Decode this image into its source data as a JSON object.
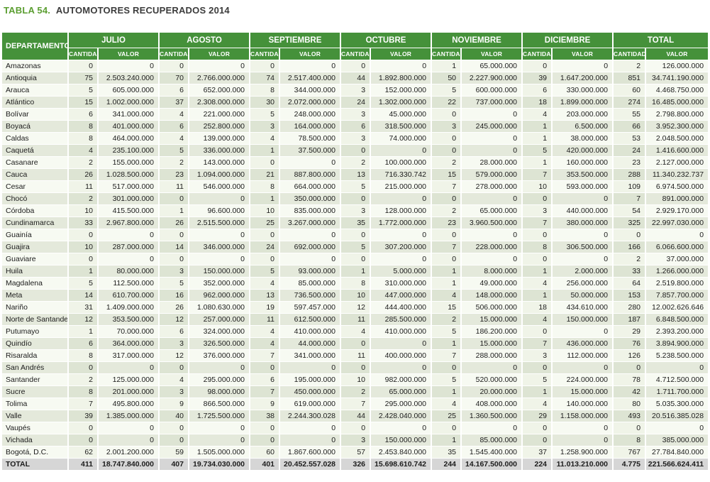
{
  "title": {
    "label": "TABLA 54.",
    "text": "AUTOMOTORES RECUPERADOS 2014"
  },
  "colors": {
    "header_green": "#45913a",
    "title_green": "#5b9e31",
    "row_light": "#f7faf2",
    "row_dark": "#e4e9db",
    "total_gray": "#d6d6d6"
  },
  "table": {
    "department_header": "DEPARTAMENTO",
    "month_groups": [
      "JULIO",
      "AGOSTO",
      "SEPTIEMBRE",
      "OCTUBRE",
      "NOVIEMBRE",
      "DICIEMBRE",
      "TOTAL"
    ],
    "sub_headers": [
      "CANTIDAD",
      "VALOR"
    ],
    "rows": [
      {
        "department": "Amazonas",
        "cells": [
          "0",
          "0",
          "0",
          "0",
          "0",
          "0",
          "0",
          "0",
          "1",
          "65.000.000",
          "0",
          "0",
          "2",
          "126.000.000"
        ]
      },
      {
        "department": "Antioquia",
        "cells": [
          "75",
          "2.503.240.000",
          "70",
          "2.766.000.000",
          "74",
          "2.517.400.000",
          "44",
          "1.892.800.000",
          "50",
          "2.227.900.000",
          "39",
          "1.647.200.000",
          "851",
          "34.741.190.000"
        ]
      },
      {
        "department": "Arauca",
        "cells": [
          "5",
          "605.000.000",
          "6",
          "652.000.000",
          "8",
          "344.000.000",
          "3",
          "152.000.000",
          "5",
          "600.000.000",
          "6",
          "330.000.000",
          "60",
          "4.468.750.000"
        ]
      },
      {
        "department": "Atlántico",
        "cells": [
          "15",
          "1.002.000.000",
          "37",
          "2.308.000.000",
          "30",
          "2.072.000.000",
          "24",
          "1.302.000.000",
          "22",
          "737.000.000",
          "18",
          "1.899.000.000",
          "274",
          "16.485.000.000"
        ]
      },
      {
        "department": "Bolívar",
        "cells": [
          "6",
          "341.000.000",
          "4",
          "221.000.000",
          "5",
          "248.000.000",
          "3",
          "45.000.000",
          "0",
          "0",
          "4",
          "203.000.000",
          "55",
          "2.798.800.000"
        ]
      },
      {
        "department": "Boyacá",
        "cells": [
          "8",
          "401.000.000",
          "6",
          "252.800.000",
          "3",
          "164.000.000",
          "6",
          "318.500.000",
          "3",
          "245.000.000",
          "1",
          "6.500.000",
          "66",
          "3.952.300.000"
        ]
      },
      {
        "department": "Caldas",
        "cells": [
          "8",
          "464.000.000",
          "4",
          "139.000.000",
          "4",
          "78.500.000",
          "3",
          "74.000.000",
          "0",
          "0",
          "1",
          "38.000.000",
          "53",
          "2.048.500.000"
        ]
      },
      {
        "department": "Caquetá",
        "cells": [
          "4",
          "235.100.000",
          "5",
          "336.000.000",
          "1",
          "37.500.000",
          "0",
          "0",
          "0",
          "0",
          "5",
          "420.000.000",
          "24",
          "1.416.600.000"
        ]
      },
      {
        "department": "Casanare",
        "cells": [
          "2",
          "155.000.000",
          "2",
          "143.000.000",
          "0",
          "0",
          "2",
          "100.000.000",
          "2",
          "28.000.000",
          "1",
          "160.000.000",
          "23",
          "2.127.000.000"
        ]
      },
      {
        "department": "Cauca",
        "cells": [
          "26",
          "1.028.500.000",
          "23",
          "1.094.000.000",
          "21",
          "887.800.000",
          "13",
          "716.330.742",
          "15",
          "579.000.000",
          "7",
          "353.500.000",
          "288",
          "11.340.232.737"
        ]
      },
      {
        "department": "Cesar",
        "cells": [
          "11",
          "517.000.000",
          "11",
          "546.000.000",
          "8",
          "664.000.000",
          "5",
          "215.000.000",
          "7",
          "278.000.000",
          "10",
          "593.000.000",
          "109",
          "6.974.500.000"
        ]
      },
      {
        "department": "Chocó",
        "cells": [
          "2",
          "301.000.000",
          "0",
          "0",
          "1",
          "350.000.000",
          "0",
          "0",
          "0",
          "0",
          "0",
          "0",
          "7",
          "891.000.000"
        ]
      },
      {
        "department": "Córdoba",
        "cells": [
          "10",
          "415.500.000",
          "1",
          "96.600.000",
          "10",
          "835.000.000",
          "3",
          "128.000.000",
          "2",
          "65.000.000",
          "3",
          "440.000.000",
          "54",
          "2.929.170.000"
        ]
      },
      {
        "department": "Cundinamarca",
        "cells": [
          "33",
          "2.967.800.000",
          "26",
          "2.515.500.000",
          "25",
          "3.267.000.000",
          "35",
          "1.772.000.000",
          "23",
          "3.960.500.000",
          "7",
          "380.000.000",
          "325",
          "22.997.030.000"
        ]
      },
      {
        "department": "Guainía",
        "cells": [
          "0",
          "0",
          "0",
          "0",
          "0",
          "0",
          "0",
          "0",
          "0",
          "0",
          "0",
          "0",
          "0",
          "0"
        ]
      },
      {
        "department": "Guajira",
        "cells": [
          "10",
          "287.000.000",
          "14",
          "346.000.000",
          "24",
          "692.000.000",
          "5",
          "307.200.000",
          "7",
          "228.000.000",
          "8",
          "306.500.000",
          "166",
          "6.066.600.000"
        ]
      },
      {
        "department": "Guaviare",
        "cells": [
          "0",
          "0",
          "0",
          "0",
          "0",
          "0",
          "0",
          "0",
          "0",
          "0",
          "0",
          "0",
          "2",
          "37.000.000"
        ]
      },
      {
        "department": "Huila",
        "cells": [
          "1",
          "80.000.000",
          "3",
          "150.000.000",
          "5",
          "93.000.000",
          "1",
          "5.000.000",
          "1",
          "8.000.000",
          "1",
          "2.000.000",
          "33",
          "1.266.000.000"
        ]
      },
      {
        "department": "Magdalena",
        "cells": [
          "5",
          "112.500.000",
          "5",
          "352.000.000",
          "4",
          "85.000.000",
          "8",
          "310.000.000",
          "1",
          "49.000.000",
          "4",
          "256.000.000",
          "64",
          "2.519.800.000"
        ]
      },
      {
        "department": "Meta",
        "cells": [
          "14",
          "610.700.000",
          "16",
          "962.000.000",
          "13",
          "736.500.000",
          "10",
          "447.000.000",
          "4",
          "148.000.000",
          "1",
          "50.000.000",
          "153",
          "7.857.700.000"
        ]
      },
      {
        "department": "Nariño",
        "cells": [
          "31",
          "1.409.000.000",
          "26",
          "1.080.630.000",
          "19",
          "597.457.000",
          "12",
          "444.400.000",
          "15",
          "506.000.000",
          "18",
          "434.610.000",
          "280",
          "12.002.626.646"
        ]
      },
      {
        "department": "Norte de Santander",
        "cells": [
          "12",
          "353.500.000",
          "12",
          "257.000.000",
          "11",
          "612.500.000",
          "11",
          "285.500.000",
          "2",
          "15.000.000",
          "4",
          "150.000.000",
          "187",
          "6.848.500.000"
        ]
      },
      {
        "department": "Putumayo",
        "cells": [
          "1",
          "70.000.000",
          "6",
          "324.000.000",
          "4",
          "410.000.000",
          "4",
          "410.000.000",
          "5",
          "186.200.000",
          "0",
          "0",
          "29",
          "2.393.200.000"
        ]
      },
      {
        "department": "Quindío",
        "cells": [
          "6",
          "364.000.000",
          "3",
          "326.500.000",
          "4",
          "44.000.000",
          "0",
          "0",
          "1",
          "15.000.000",
          "7",
          "436.000.000",
          "76",
          "3.894.900.000"
        ]
      },
      {
        "department": "Risaralda",
        "cells": [
          "8",
          "317.000.000",
          "12",
          "376.000.000",
          "7",
          "341.000.000",
          "11",
          "400.000.000",
          "7",
          "288.000.000",
          "3",
          "112.000.000",
          "126",
          "5.238.500.000"
        ]
      },
      {
        "department": "San Andrés",
        "cells": [
          "0",
          "0",
          "0",
          "0",
          "0",
          "0",
          "0",
          "0",
          "0",
          "0",
          "0",
          "0",
          "0",
          "0"
        ]
      },
      {
        "department": "Santander",
        "cells": [
          "2",
          "125.000.000",
          "4",
          "295.000.000",
          "6",
          "195.000.000",
          "10",
          "982.000.000",
          "5",
          "520.000.000",
          "5",
          "224.000.000",
          "78",
          "4.712.500.000"
        ]
      },
      {
        "department": "Sucre",
        "cells": [
          "8",
          "201.000.000",
          "3",
          "98.000.000",
          "7",
          "450.000.000",
          "2",
          "65.000.000",
          "1",
          "20.000.000",
          "1",
          "15.000.000",
          "42",
          "1.711.700.000"
        ]
      },
      {
        "department": "Tolima",
        "cells": [
          "7",
          "495.800.000",
          "9",
          "866.500.000",
          "9",
          "619.000.000",
          "7",
          "295.000.000",
          "4",
          "408.000.000",
          "4",
          "140.000.000",
          "80",
          "5.035.300.000"
        ]
      },
      {
        "department": "Valle",
        "cells": [
          "39",
          "1.385.000.000",
          "40",
          "1.725.500.000",
          "38",
          "2.244.300.028",
          "44",
          "2.428.040.000",
          "25",
          "1.360.500.000",
          "29",
          "1.158.000.000",
          "493",
          "20.516.385.028"
        ]
      },
      {
        "department": "Vaupés",
        "cells": [
          "0",
          "0",
          "0",
          "0",
          "0",
          "0",
          "0",
          "0",
          "0",
          "0",
          "0",
          "0",
          "0",
          "0"
        ]
      },
      {
        "department": "Vichada",
        "cells": [
          "0",
          "0",
          "0",
          "0",
          "0",
          "0",
          "3",
          "150.000.000",
          "1",
          "85.000.000",
          "0",
          "0",
          "8",
          "385.000.000"
        ]
      },
      {
        "department": "Bogotá, D.C.",
        "cells": [
          "62",
          "2.001.200.000",
          "59",
          "1.505.000.000",
          "60",
          "1.867.600.000",
          "57",
          "2.453.840.000",
          "35",
          "1.545.400.000",
          "37",
          "1.258.900.000",
          "767",
          "27.784.840.000"
        ]
      }
    ],
    "total_row": {
      "department": "TOTAL",
      "cells": [
        "411",
        "18.747.840.000",
        "407",
        "19.734.030.000",
        "401",
        "20.452.557.028",
        "326",
        "15.698.610.742",
        "244",
        "14.167.500.000",
        "224",
        "11.013.210.000",
        "4.775",
        "221.566.624.411"
      ]
    }
  }
}
